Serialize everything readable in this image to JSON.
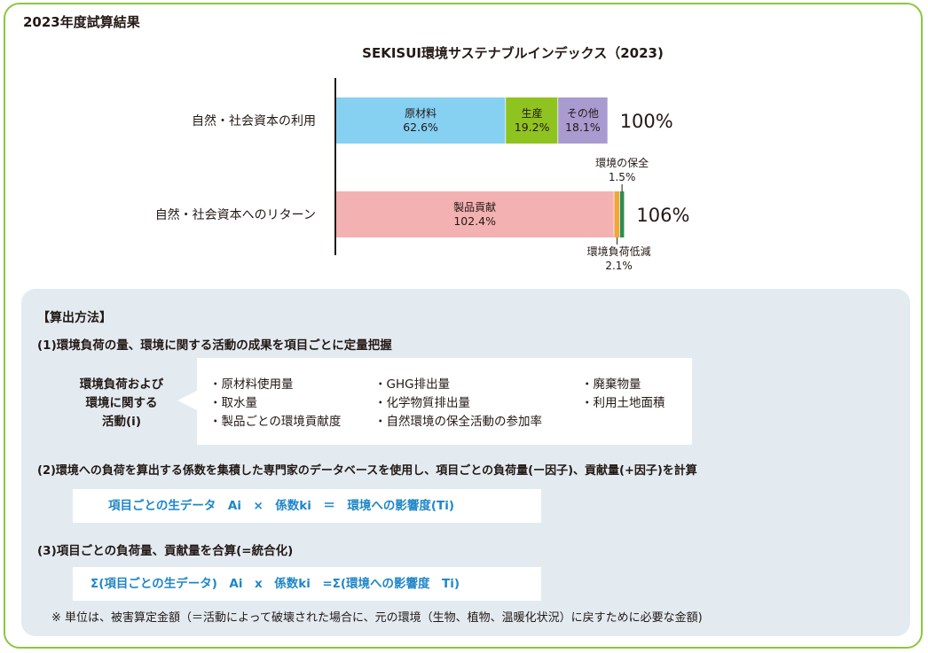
{
  "heading": "2023年度試算結果",
  "chart_data": {
    "type": "bar",
    "stacked": true,
    "orientation": "horizontal",
    "title": "SEKISUI環境サステナブルインデックス（2023)",
    "categories": [
      "自然・社会資本の利用",
      "自然・社会資本へのリターン"
    ],
    "rows": [
      {
        "category": "自然・社会資本の利用",
        "total_label": "100%",
        "segments": [
          {
            "name": "原材料",
            "value": 62.6,
            "label": "62.6%",
            "color": "#86d0f2"
          },
          {
            "name": "生産",
            "value": 19.2,
            "label": "19.2%",
            "color": "#8fc31f"
          },
          {
            "name": "その他",
            "value": 18.1,
            "label": "18.1%",
            "color": "#a99bd0"
          }
        ]
      },
      {
        "category": "自然・社会資本へのリターン",
        "total_label": "106%",
        "segments": [
          {
            "name": "製品貢献",
            "value": 102.4,
            "label": "102.4%",
            "color": "#f3b1b1"
          },
          {
            "name": "環境負荷低減",
            "value": 2.1,
            "label": "2.1%",
            "color": "#f0a63a"
          },
          {
            "name": "環境の保全",
            "value": 1.5,
            "label": "1.5%",
            "color": "#2e8b4f"
          }
        ]
      }
    ],
    "xlim": [
      0,
      106
    ]
  },
  "method": {
    "title": "【算出方法】",
    "step1": "(1)環境負荷の量、環境に関する活動の成果を項目ごとに定量把握",
    "side_label": [
      "環境負荷および",
      "環境に関する",
      "活動(i)"
    ],
    "items_col1": [
      "・原材料使用量",
      "・取水量",
      "・製品ごとの環境貢献度"
    ],
    "items_col2": [
      "・GHG排出量",
      "・化学物質排出量",
      "・自然環境の保全活動の参加率"
    ],
    "items_col3": [
      "・廃棄物量",
      "・利用土地面積"
    ],
    "step2": "(2)環境への負荷を算出する係数を集積した専門家のデータベースを使用し、項目ごとの負荷量(ー因子)、貢献量(+因子)を計算",
    "formula1": "項目ごとの生データ　Ai　×　係数ki　＝　環境への影響度(Ti)",
    "step3": "(3)項目ごとの負荷量、貢献量を合算(=統合化)",
    "formula2": "Σ(項目ごとの生データ)　Ai　x　係数ki　=Σ(環境への影響度　Ti)",
    "note": "※ 単位は、被害算定金額（＝活動によって破壊された場合に、元の環境（生物、植物、温暖化状況）に戻すために必要な金額)"
  }
}
